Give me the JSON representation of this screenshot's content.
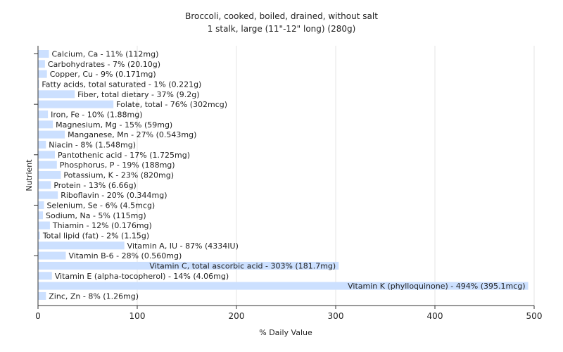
{
  "chart_data": {
    "type": "bar",
    "orientation": "horizontal",
    "title": "Broccoli, cooked, boiled, drained, without salt",
    "subtitle": "1 stalk, large (11\"-12\" long) (280g)",
    "xlabel": "% Daily Value",
    "ylabel": "Nutrient",
    "xlim": [
      0,
      500
    ],
    "xticks": [
      0,
      100,
      200,
      300,
      400,
      500
    ],
    "grid": true,
    "bar_color": "#cce0ff",
    "categories": [
      "Calcium, Ca - 11% (112mg)",
      "Carbohydrates - 7% (20.10g)",
      "Copper, Cu - 9% (0.171mg)",
      "Fatty acids, total saturated - 1% (0.221g)",
      "Fiber, total dietary - 37% (9.2g)",
      "Folate, total - 76% (302mcg)",
      "Iron, Fe - 10% (1.88mg)",
      "Magnesium, Mg - 15% (59mg)",
      "Manganese, Mn - 27% (0.543mg)",
      "Niacin - 8% (1.548mg)",
      "Pantothenic acid - 17% (1.725mg)",
      "Phosphorus, P - 19% (188mg)",
      "Potassium, K - 23% (820mg)",
      "Protein - 13% (6.66g)",
      "Riboflavin - 20% (0.344mg)",
      "Selenium, Se - 6% (4.5mcg)",
      "Sodium, Na - 5% (115mg)",
      "Thiamin - 12% (0.176mg)",
      "Total lipid (fat) - 2% (1.15g)",
      "Vitamin A, IU - 87% (4334IU)",
      "Vitamin B-6 - 28% (0.560mg)",
      "Vitamin C, total ascorbic acid - 303% (181.7mg)",
      "Vitamin E (alpha-tocopherol) - 14% (4.06mg)",
      "Vitamin K (phylloquinone) - 494% (395.1mcg)",
      "Zinc, Zn - 8% (1.26mg)"
    ],
    "values": [
      11,
      7,
      9,
      1,
      37,
      76,
      10,
      15,
      27,
      8,
      17,
      19,
      23,
      13,
      20,
      6,
      5,
      12,
      2,
      87,
      28,
      303,
      14,
      494,
      8
    ]
  }
}
